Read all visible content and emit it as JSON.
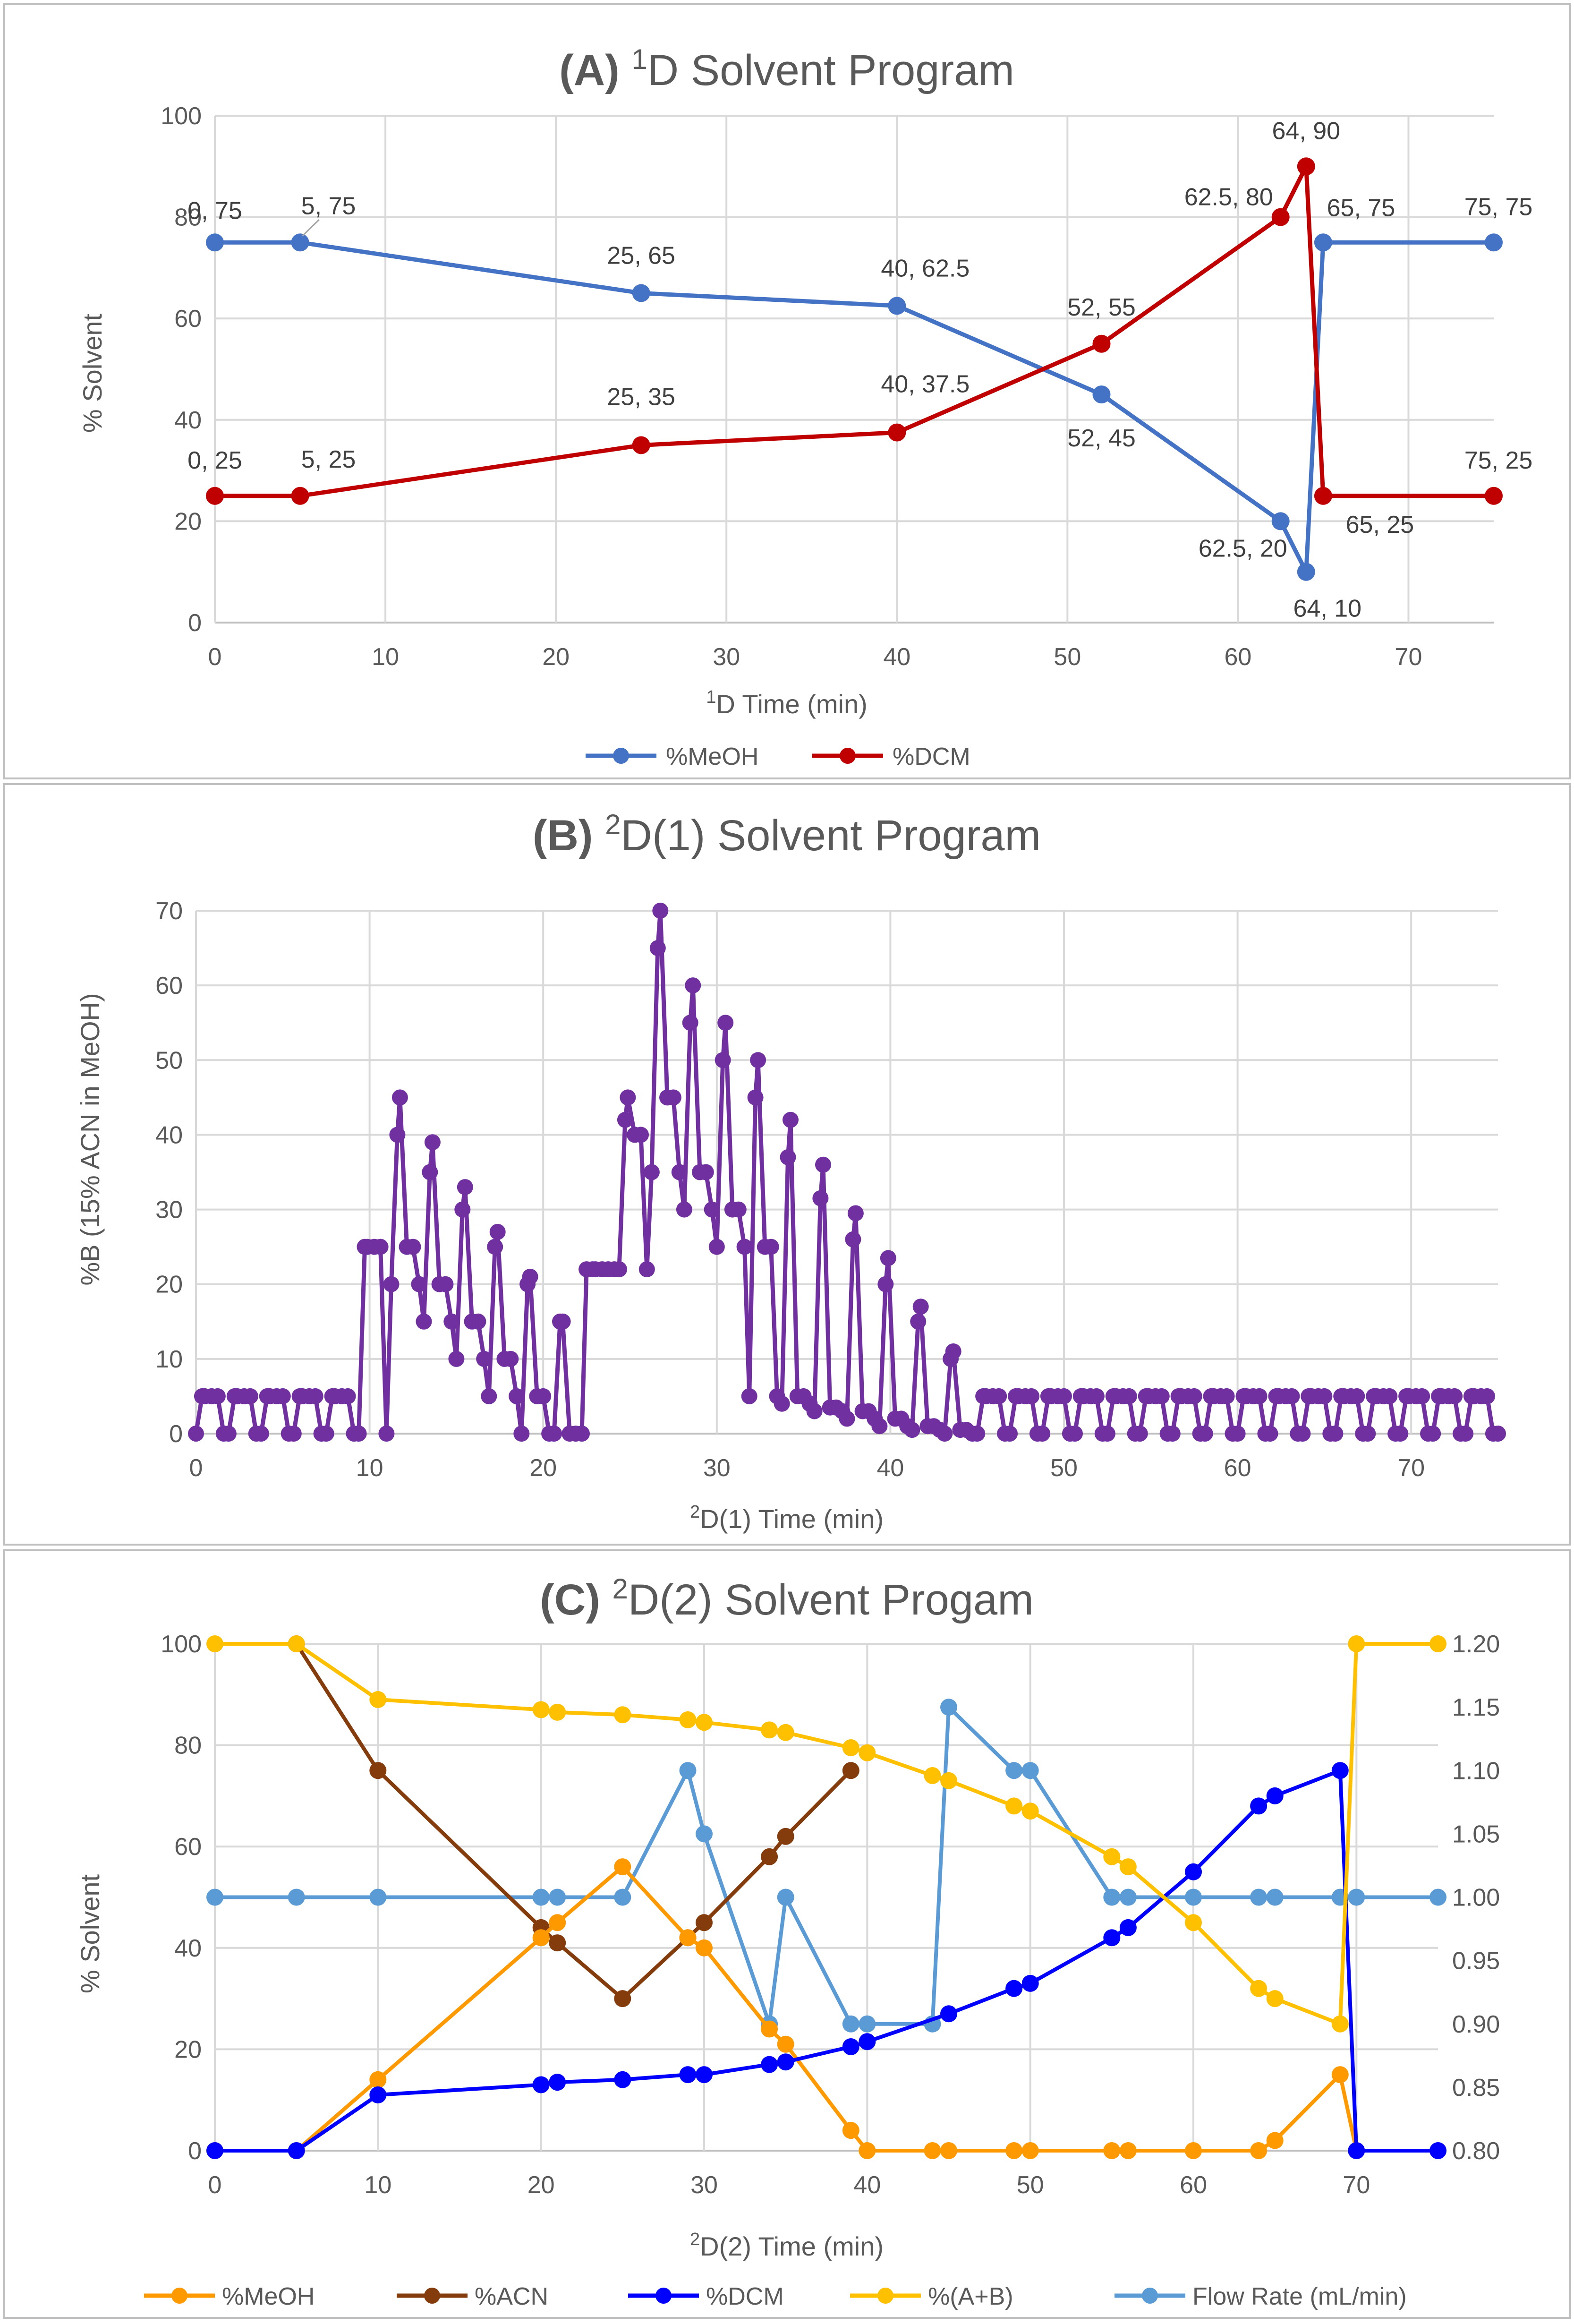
{
  "colors": {
    "meoh_blue": "#4472C4",
    "dcm_red": "#C00000",
    "purple": "#7030A0",
    "orange": "#FF9900",
    "brown": "#843C0C",
    "dcm_blue": "#0000FF",
    "gold": "#FFC000",
    "lightblue": "#5B9BD5",
    "grid": "#D9D9D9",
    "axis_text": "#595959",
    "border": "#BFBFBF"
  },
  "chart_data": [
    {
      "type": "line",
      "title_bold": "(A)",
      "title_sup": "1",
      "title_rest": "D Solvent Program",
      "xlabel_sup": "1",
      "xlabel_rest": "D Time (min)",
      "ylabel": "% Solvent",
      "xlim": [
        0,
        75
      ],
      "ylim": [
        0,
        100
      ],
      "xticks": [
        0,
        10,
        20,
        30,
        40,
        50,
        60,
        70
      ],
      "yticks": [
        0,
        20,
        40,
        60,
        80,
        100
      ],
      "grid": true,
      "legend_position": "bottom",
      "series": [
        {
          "name": "%MeOH",
          "color": "#4472C4",
          "x": [
            0,
            5,
            25,
            40,
            52,
            62.5,
            64,
            65,
            75
          ],
          "y": [
            75,
            75,
            65,
            62.5,
            45,
            20,
            10,
            75,
            75
          ],
          "labels": [
            "0, 75",
            "5, 75",
            "25, 65",
            "40, 62.5",
            "52, 45",
            "62.5, 20",
            "64, 10",
            "65, 75",
            "75, 75"
          ]
        },
        {
          "name": "%DCM",
          "color": "#C00000",
          "x": [
            0,
            5,
            25,
            40,
            52,
            62.5,
            64,
            65,
            75
          ],
          "y": [
            25,
            25,
            35,
            37.5,
            55,
            80,
            90,
            25,
            25
          ],
          "labels": [
            "0, 25",
            "5, 25",
            "25, 35",
            "40, 37.5",
            "52, 55",
            "62.5, 80",
            "64, 90",
            "65, 25",
            "75, 25"
          ]
        }
      ]
    },
    {
      "type": "line",
      "title_bold": "(B)",
      "title_sup": "2",
      "title_rest": "D(1) Solvent Program",
      "xlabel_sup": "2",
      "xlabel_rest": "D(1) Time (min)",
      "ylabel": "%B (15% ACN in MeOH)",
      "xlim": [
        0,
        75
      ],
      "ylim": [
        0,
        70
      ],
      "xticks": [
        0,
        10,
        20,
        30,
        40,
        50,
        60,
        70
      ],
      "yticks": [
        0,
        10,
        20,
        30,
        40,
        50,
        60,
        70
      ],
      "grid": true,
      "series": [
        {
          "name": "%B",
          "color": "#7030A0",
          "peaks": [
            5,
            5,
            5,
            5,
            5,
            25,
            45,
            39,
            33,
            27,
            21,
            15,
            22,
            45,
            70,
            60,
            55,
            50,
            42,
            36,
            29.5,
            23.5,
            17,
            11,
            5,
            5,
            5,
            5,
            5,
            5,
            5,
            5,
            5,
            5,
            5,
            5,
            5,
            5,
            5,
            5
          ],
          "mids": [
            5,
            5,
            5,
            5,
            5,
            25,
            25,
            20,
            15,
            10,
            5,
            0,
            22,
            40,
            45,
            35,
            30,
            25,
            5,
            3.5,
            3,
            2,
            1,
            0.5,
            5,
            5,
            5,
            5,
            5,
            5,
            5,
            5,
            5,
            5,
            5,
            5,
            5,
            5,
            5,
            5
          ],
          "highs": [
            5,
            5,
            5,
            5,
            5,
            25,
            40,
            35,
            30,
            25,
            20,
            15,
            22,
            42,
            65,
            55,
            50,
            45,
            37,
            31.5,
            26,
            20,
            15,
            10,
            5,
            5,
            5,
            5,
            5,
            5,
            5,
            5,
            5,
            5,
            5,
            5,
            5,
            5,
            5,
            5
          ],
          "lows": [
            0,
            0,
            0,
            0,
            0,
            0,
            20,
            15,
            10,
            5,
            0,
            0,
            22,
            22,
            35,
            30,
            25,
            5,
            4,
            3,
            2,
            1,
            0.5,
            0,
            0,
            0,
            0,
            0,
            0,
            0,
            0,
            0,
            0,
            0,
            0,
            0,
            0,
            0,
            0,
            0
          ]
        }
      ]
    },
    {
      "type": "line",
      "title_bold": "(C)",
      "title_sup": "2",
      "title_rest": "D(2) Solvent Progam",
      "xlabel_sup": "2",
      "xlabel_rest": "D(2) Time (min)",
      "ylabel": "% Solvent",
      "xlim": [
        0,
        75
      ],
      "ylim": [
        0,
        100
      ],
      "y2lim": [
        0.8,
        1.2
      ],
      "xticks": [
        0,
        10,
        20,
        30,
        40,
        50,
        60,
        70
      ],
      "yticks": [
        0,
        20,
        40,
        60,
        80,
        100
      ],
      "y2ticks": [
        "0.80",
        "0.85",
        "0.90",
        "0.95",
        "1.00",
        "1.05",
        "1.10",
        "1.15",
        "1.20"
      ],
      "grid": true,
      "legend_position": "bottom",
      "series": [
        {
          "name": "%MeOH",
          "color": "#FF9900",
          "axis": "left",
          "x": [
            0,
            5,
            10,
            20,
            21,
            25,
            29,
            30,
            34,
            35,
            39,
            40,
            44,
            45,
            49,
            50,
            55,
            56,
            60,
            64,
            65,
            69,
            70
          ],
          "y": [
            0,
            0,
            14,
            42,
            45,
            56,
            42,
            40,
            24,
            21,
            4,
            0,
            0,
            0,
            0,
            0,
            0,
            0,
            0,
            0,
            2,
            15,
            0
          ]
        },
        {
          "name": "%ACN",
          "color": "#843C0C",
          "axis": "left",
          "x": [
            5,
            10,
            20,
            21,
            25,
            29,
            30,
            34,
            35,
            39
          ],
          "y": [
            100,
            75,
            44,
            41,
            30,
            42,
            45,
            58,
            62,
            75
          ]
        },
        {
          "name": "%DCM",
          "color": "#0000FF",
          "axis": "left",
          "x": [
            0,
            5,
            10,
            20,
            21,
            25,
            29,
            30,
            34,
            35,
            39,
            40,
            45,
            49,
            50,
            55,
            56,
            60,
            64,
            65,
            69,
            70,
            75
          ],
          "y": [
            0,
            0,
            11,
            13,
            13.5,
            14,
            15,
            15,
            17,
            17.5,
            20.5,
            21.5,
            27,
            32,
            33,
            42,
            44,
            55,
            68,
            70,
            75,
            0,
            0
          ]
        },
        {
          "name": "%(A+B)",
          "color": "#FFC000",
          "axis": "left",
          "x": [
            0,
            5,
            10,
            20,
            21,
            25,
            29,
            30,
            34,
            35,
            39,
            40,
            44,
            45,
            49,
            50,
            55,
            56,
            60,
            64,
            65,
            69,
            70,
            75
          ],
          "y": [
            100,
            100,
            89,
            87,
            86.5,
            86,
            85,
            84.5,
            83,
            82.5,
            79.5,
            78.5,
            74,
            73,
            68,
            67,
            58,
            56,
            45,
            32,
            30,
            25,
            100,
            100
          ]
        },
        {
          "name": "Flow Rate (mL/min)",
          "color": "#5B9BD5",
          "axis": "right",
          "x": [
            0,
            5,
            10,
            20,
            21,
            25,
            29,
            30,
            34,
            35,
            39,
            40,
            44,
            45,
            49,
            50,
            55,
            56,
            60,
            64,
            65,
            69,
            70,
            75
          ],
          "y": [
            1.0,
            1.0,
            1.0,
            1.0,
            1.0,
            1.0,
            1.1,
            1.05,
            0.9,
            1.0,
            0.9,
            0.9,
            0.9,
            1.15,
            1.1,
            1.1,
            1.0,
            1.0,
            1.0,
            1.0,
            1.0,
            1.0,
            1.0,
            1.0
          ]
        }
      ]
    }
  ]
}
